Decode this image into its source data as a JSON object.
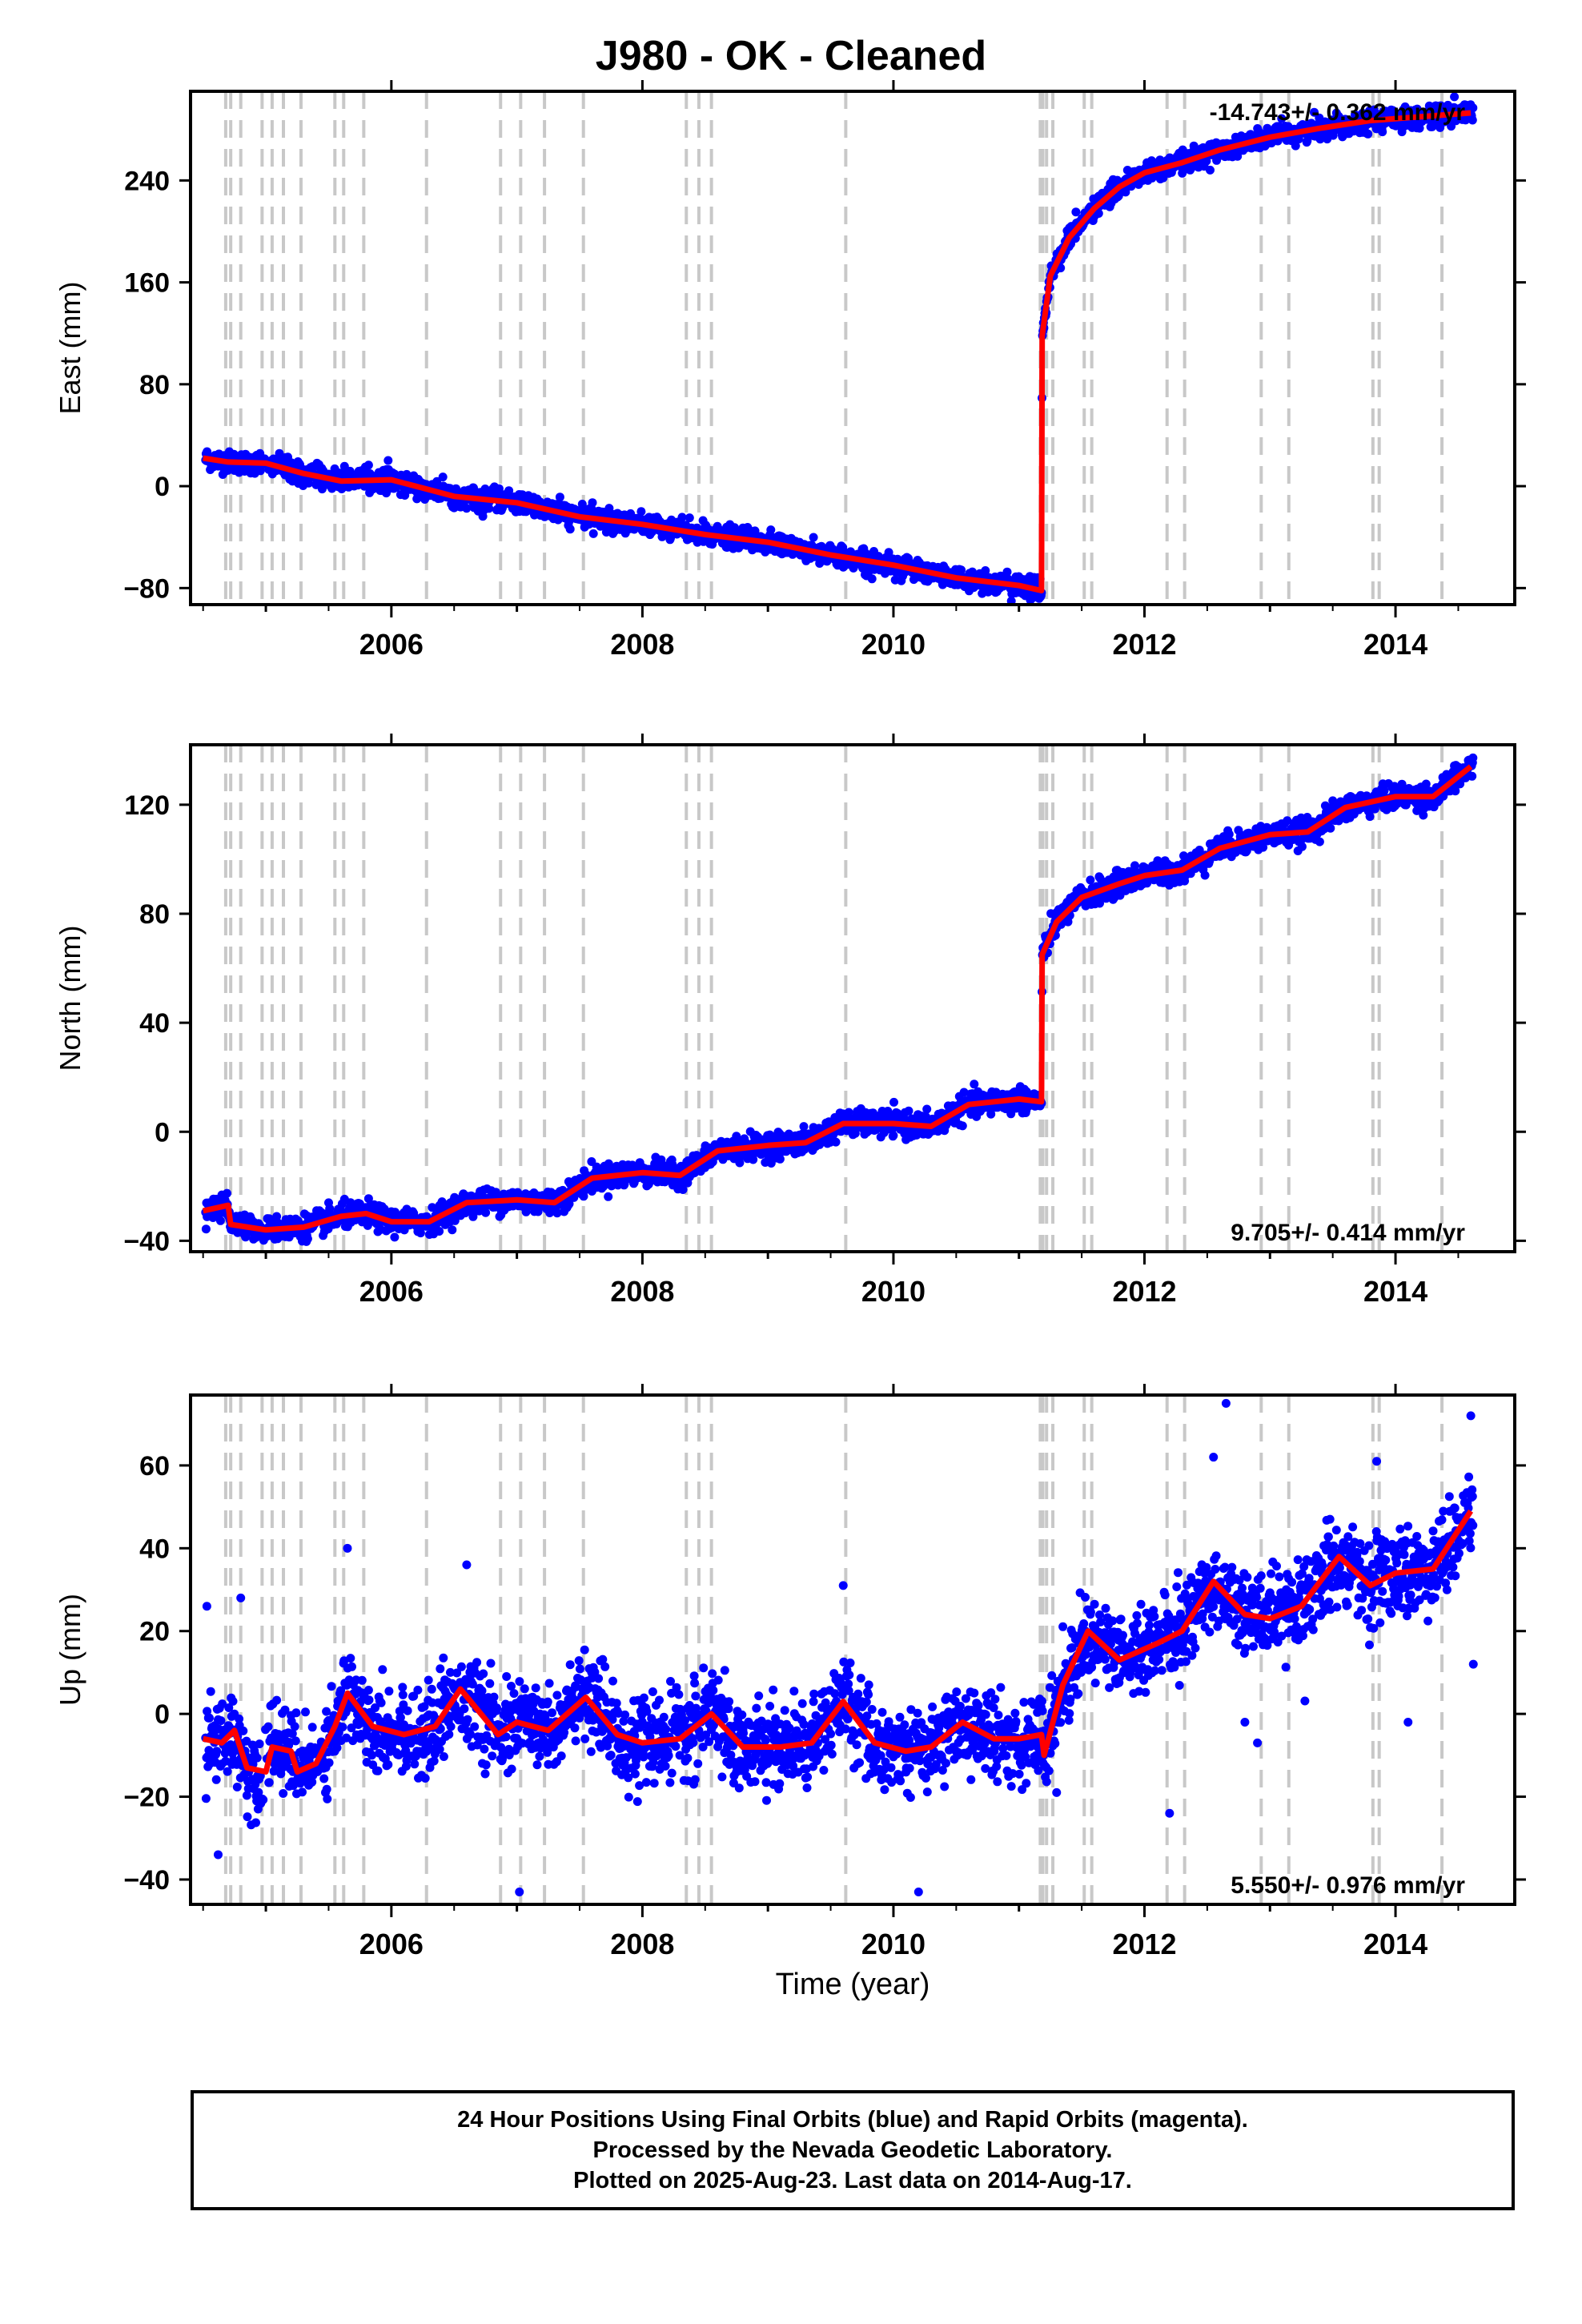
{
  "title": "J980  - OK - Cleaned",
  "xlabel": "Time (year)",
  "footer": {
    "line1": "24 Hour Positions Using Final Orbits (blue) and Rapid Orbits (magenta).",
    "line2": "Processed by the Nevada Geodetic Laboratory.",
    "line3": "Plotted on 2025-Aug-23. Last data on 2014-Aug-17."
  },
  "colors": {
    "points": "#0000ff",
    "model": "#ff0000",
    "events": "#c8c8c8",
    "frame": "#000000"
  },
  "chart_data": [
    {
      "type": "scatter",
      "name": "east",
      "ylabel": "East (mm)",
      "rate": "-14.743+/- 0.362 mm/yr",
      "rate_position": "top-right",
      "xlim": [
        2004.4,
        2014.95
      ],
      "ylim": [
        -93,
        310
      ],
      "xticks": [
        2006,
        2008,
        2010,
        2012,
        2014
      ],
      "yticks": [
        -80,
        0,
        80,
        160,
        240
      ],
      "model": [
        [
          2004.5,
          22
        ],
        [
          2004.7,
          19
        ],
        [
          2005.0,
          18
        ],
        [
          2005.3,
          10
        ],
        [
          2005.6,
          4
        ],
        [
          2006.0,
          5
        ],
        [
          2006.5,
          -8
        ],
        [
          2007.0,
          -13
        ],
        [
          2007.5,
          -24
        ],
        [
          2008.0,
          -30
        ],
        [
          2008.5,
          -38
        ],
        [
          2009.0,
          -44
        ],
        [
          2009.5,
          -54
        ],
        [
          2010.0,
          -62
        ],
        [
          2010.5,
          -72
        ],
        [
          2011.0,
          -78
        ],
        [
          2011.18,
          -82
        ],
        [
          2011.185,
          118
        ],
        [
          2011.25,
          165
        ],
        [
          2011.4,
          195
        ],
        [
          2011.6,
          218
        ],
        [
          2011.8,
          235
        ],
        [
          2012.0,
          246
        ],
        [
          2012.3,
          254
        ],
        [
          2012.6,
          264
        ],
        [
          2013.0,
          274
        ],
        [
          2013.4,
          281
        ],
        [
          2013.8,
          287
        ],
        [
          2014.2,
          290
        ],
        [
          2014.6,
          293
        ]
      ],
      "noise": 4,
      "outliers": []
    },
    {
      "type": "scatter",
      "name": "north",
      "ylabel": "North (mm)",
      "rate": "9.705+/- 0.414 mm/yr",
      "rate_position": "bottom-right",
      "xlim": [
        2004.4,
        2014.95
      ],
      "ylim": [
        -44,
        142
      ],
      "xticks": [
        2006,
        2008,
        2010,
        2012,
        2014
      ],
      "yticks": [
        -40,
        0,
        40,
        80,
        120
      ],
      "model": [
        [
          2004.5,
          -29
        ],
        [
          2004.7,
          -27
        ],
        [
          2004.72,
          -34
        ],
        [
          2005.0,
          -36
        ],
        [
          2005.3,
          -35
        ],
        [
          2005.6,
          -31
        ],
        [
          2005.8,
          -30
        ],
        [
          2006.0,
          -33
        ],
        [
          2006.3,
          -33
        ],
        [
          2006.6,
          -26
        ],
        [
          2007.0,
          -25
        ],
        [
          2007.3,
          -26
        ],
        [
          2007.6,
          -17
        ],
        [
          2008.0,
          -15
        ],
        [
          2008.3,
          -16
        ],
        [
          2008.6,
          -7
        ],
        [
          2009.0,
          -5
        ],
        [
          2009.3,
          -4
        ],
        [
          2009.6,
          3
        ],
        [
          2010.0,
          3
        ],
        [
          2010.3,
          2
        ],
        [
          2010.6,
          10
        ],
        [
          2011.0,
          12
        ],
        [
          2011.18,
          11
        ],
        [
          2011.185,
          65
        ],
        [
          2011.3,
          77
        ],
        [
          2011.5,
          86
        ],
        [
          2011.8,
          91
        ],
        [
          2012.0,
          94
        ],
        [
          2012.3,
          96
        ],
        [
          2012.6,
          104
        ],
        [
          2013.0,
          109
        ],
        [
          2013.3,
          110
        ],
        [
          2013.6,
          119
        ],
        [
          2014.0,
          123
        ],
        [
          2014.3,
          123
        ],
        [
          2014.6,
          134
        ]
      ],
      "noise": 2.2,
      "outliers": []
    },
    {
      "type": "scatter",
      "name": "up",
      "ylabel": "Up (mm)",
      "rate": "5.550+/- 0.976 mm/yr",
      "rate_position": "bottom-right",
      "xlim": [
        2004.4,
        2014.95
      ],
      "ylim": [
        -46,
        77
      ],
      "xticks": [
        2006,
        2008,
        2010,
        2012,
        2014
      ],
      "yticks": [
        -40,
        -20,
        0,
        20,
        40,
        60
      ],
      "model": [
        [
          2004.5,
          -6
        ],
        [
          2004.65,
          -7
        ],
        [
          2004.75,
          -4
        ],
        [
          2004.85,
          -13
        ],
        [
          2005.0,
          -14
        ],
        [
          2005.05,
          -8
        ],
        [
          2005.2,
          -9
        ],
        [
          2005.25,
          -14
        ],
        [
          2005.4,
          -12
        ],
        [
          2005.55,
          -3
        ],
        [
          2005.65,
          5
        ],
        [
          2005.85,
          -3
        ],
        [
          2006.1,
          -5
        ],
        [
          2006.35,
          -3
        ],
        [
          2006.55,
          6
        ],
        [
          2006.85,
          -5
        ],
        [
          2007.0,
          -2
        ],
        [
          2007.25,
          -4
        ],
        [
          2007.55,
          4
        ],
        [
          2007.8,
          -5
        ],
        [
          2008.0,
          -7
        ],
        [
          2008.3,
          -6
        ],
        [
          2008.55,
          0
        ],
        [
          2008.8,
          -8
        ],
        [
          2009.1,
          -8
        ],
        [
          2009.35,
          -7
        ],
        [
          2009.6,
          3
        ],
        [
          2009.85,
          -7
        ],
        [
          2010.1,
          -9
        ],
        [
          2010.3,
          -8
        ],
        [
          2010.55,
          -2
        ],
        [
          2010.8,
          -6
        ],
        [
          2011.0,
          -6
        ],
        [
          2011.18,
          -5
        ],
        [
          2011.2,
          -10
        ],
        [
          2011.35,
          7
        ],
        [
          2011.55,
          20
        ],
        [
          2011.8,
          13
        ],
        [
          2012.1,
          17
        ],
        [
          2012.3,
          20
        ],
        [
          2012.55,
          32
        ],
        [
          2012.8,
          24
        ],
        [
          2013.0,
          23
        ],
        [
          2013.25,
          26
        ],
        [
          2013.55,
          38
        ],
        [
          2013.8,
          31
        ],
        [
          2014.0,
          34
        ],
        [
          2014.3,
          35
        ],
        [
          2014.6,
          49
        ]
      ],
      "noise": 5,
      "outliers": [
        [
          2004.53,
          26
        ],
        [
          2004.62,
          -34
        ],
        [
          2004.8,
          28
        ],
        [
          2005.65,
          40
        ],
        [
          2006.6,
          36
        ],
        [
          2007.02,
          -43
        ],
        [
          2009.6,
          31
        ],
        [
          2010.2,
          -43
        ],
        [
          2011.3,
          -19
        ],
        [
          2012.2,
          -24
        ],
        [
          2012.55,
          62
        ],
        [
          2012.65,
          75
        ],
        [
          2013.85,
          61
        ],
        [
          2014.1,
          -2
        ],
        [
          2014.6,
          72
        ],
        [
          2014.62,
          12
        ],
        [
          2012.9,
          -7
        ],
        [
          2012.8,
          -2
        ]
      ]
    }
  ],
  "events": [
    2004.68,
    2004.72,
    2004.8,
    2004.97,
    2005.05,
    2005.14,
    2005.28,
    2005.55,
    2005.62,
    2005.78,
    2006.28,
    2006.87,
    2007.03,
    2007.22,
    2007.53,
    2008.35,
    2008.45,
    2008.55,
    2009.62,
    2011.17,
    2011.19,
    2011.22,
    2011.27,
    2011.52,
    2011.58,
    2012.18,
    2012.32,
    2012.93,
    2013.15,
    2013.82,
    2013.87,
    2014.37
  ]
}
